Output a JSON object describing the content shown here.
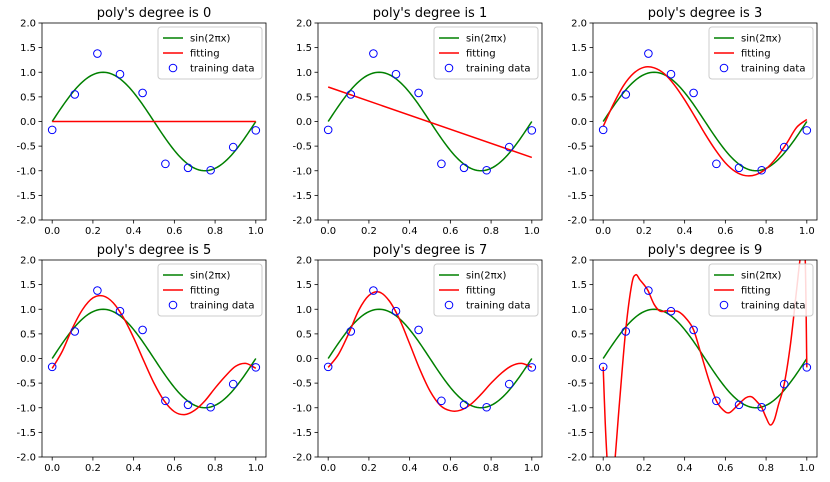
{
  "chart_data": [
    {
      "type": "line",
      "title": "poly's degree is 0",
      "xlim": [
        -0.05,
        1.05
      ],
      "ylim": [
        -2.0,
        2.0
      ],
      "xticks": [
        0.0,
        0.2,
        0.4,
        0.6,
        0.8,
        1.0
      ],
      "yticks": [
        -2.0,
        -1.5,
        -1.0,
        -0.5,
        0.0,
        0.5,
        1.0,
        1.5,
        2.0
      ],
      "grid": false,
      "legend_position": "top-right",
      "legend": [
        "sin(2πx)",
        "fitting",
        "training data"
      ],
      "training_data": {
        "x": [
          0.0,
          0.111,
          0.222,
          0.333,
          0.444,
          0.556,
          0.667,
          0.778,
          0.889,
          1.0
        ],
        "y": [
          -0.17,
          0.55,
          1.38,
          0.96,
          0.58,
          -0.86,
          -0.94,
          -0.99,
          -0.52,
          -0.18
        ]
      },
      "fitting": {
        "x": [
          0.0,
          1.0
        ],
        "y": [
          0.0,
          0.0
        ]
      }
    },
    {
      "type": "line",
      "title": "poly's degree is 1",
      "xlim": [
        -0.05,
        1.05
      ],
      "ylim": [
        -2.0,
        2.0
      ],
      "xticks": [
        0.0,
        0.2,
        0.4,
        0.6,
        0.8,
        1.0
      ],
      "yticks": [
        -2.0,
        -1.5,
        -1.0,
        -0.5,
        0.0,
        0.5,
        1.0,
        1.5,
        2.0
      ],
      "grid": false,
      "legend_position": "top-right",
      "legend": [
        "sin(2πx)",
        "fitting",
        "training data"
      ],
      "training_data": {
        "x": [
          0.0,
          0.111,
          0.222,
          0.333,
          0.444,
          0.556,
          0.667,
          0.778,
          0.889,
          1.0
        ],
        "y": [
          -0.17,
          0.55,
          1.38,
          0.96,
          0.58,
          -0.86,
          -0.94,
          -0.99,
          -0.52,
          -0.18
        ]
      },
      "fitting": {
        "x": [
          0.0,
          1.0
        ],
        "y": [
          0.7,
          -0.73
        ]
      }
    },
    {
      "type": "line",
      "title": "poly's degree is 3",
      "xlim": [
        -0.05,
        1.05
      ],
      "ylim": [
        -2.0,
        2.0
      ],
      "xticks": [
        0.0,
        0.2,
        0.4,
        0.6,
        0.8,
        1.0
      ],
      "yticks": [
        -2.0,
        -1.5,
        -1.0,
        -0.5,
        0.0,
        0.5,
        1.0,
        1.5,
        2.0
      ],
      "grid": false,
      "legend_position": "top-right",
      "legend": [
        "sin(2πx)",
        "fitting",
        "training data"
      ],
      "training_data": {
        "x": [
          0.0,
          0.111,
          0.222,
          0.333,
          0.444,
          0.556,
          0.667,
          0.778,
          0.889,
          1.0
        ],
        "y": [
          -0.17,
          0.55,
          1.38,
          0.96,
          0.58,
          -0.86,
          -0.94,
          -0.99,
          -0.52,
          -0.18
        ]
      },
      "fitting": {
        "x": [
          0.0,
          0.05,
          0.1,
          0.15,
          0.2,
          0.25,
          0.3,
          0.35,
          0.4,
          0.45,
          0.5,
          0.55,
          0.6,
          0.65,
          0.7,
          0.75,
          0.8,
          0.85,
          0.9,
          0.95,
          1.0
        ],
        "y": [
          -0.1,
          0.35,
          0.73,
          0.98,
          1.1,
          1.09,
          0.97,
          0.74,
          0.44,
          0.1,
          -0.25,
          -0.57,
          -0.84,
          -1.02,
          -1.1,
          -1.08,
          -0.96,
          -0.74,
          -0.45,
          -0.12,
          0.04
        ]
      }
    },
    {
      "type": "line",
      "title": "poly's degree is 5",
      "xlim": [
        -0.05,
        1.05
      ],
      "ylim": [
        -2.0,
        2.0
      ],
      "xticks": [
        0.0,
        0.2,
        0.4,
        0.6,
        0.8,
        1.0
      ],
      "yticks": [
        -2.0,
        -1.5,
        -1.0,
        -0.5,
        0.0,
        0.5,
        1.0,
        1.5,
        2.0
      ],
      "grid": false,
      "legend_position": "top-right",
      "legend": [
        "sin(2πx)",
        "fitting",
        "training data"
      ],
      "training_data": {
        "x": [
          0.0,
          0.111,
          0.222,
          0.333,
          0.444,
          0.556,
          0.667,
          0.778,
          0.889,
          1.0
        ],
        "y": [
          -0.17,
          0.55,
          1.38,
          0.96,
          0.58,
          -0.86,
          -0.94,
          -0.99,
          -0.52,
          -0.18
        ]
      },
      "fitting": {
        "x": [
          0.0,
          0.05,
          0.1,
          0.15,
          0.2,
          0.25,
          0.3,
          0.35,
          0.4,
          0.45,
          0.5,
          0.55,
          0.6,
          0.65,
          0.7,
          0.75,
          0.8,
          0.85,
          0.9,
          0.95,
          1.0
        ],
        "y": [
          -0.2,
          0.15,
          0.62,
          1.0,
          1.23,
          1.27,
          1.13,
          0.83,
          0.42,
          -0.05,
          -0.5,
          -0.86,
          -1.08,
          -1.14,
          -1.05,
          -0.86,
          -0.6,
          -0.36,
          -0.16,
          -0.1,
          -0.2
        ]
      }
    },
    {
      "type": "line",
      "title": "poly's degree is 7",
      "xlim": [
        -0.05,
        1.05
      ],
      "ylim": [
        -2.0,
        2.0
      ],
      "xticks": [
        0.0,
        0.2,
        0.4,
        0.6,
        0.8,
        1.0
      ],
      "yticks": [
        -2.0,
        -1.5,
        -1.0,
        -0.5,
        0.0,
        0.5,
        1.0,
        1.5,
        2.0
      ],
      "grid": false,
      "legend_position": "top-right",
      "legend": [
        "sin(2πx)",
        "fitting",
        "training data"
      ],
      "training_data": {
        "x": [
          0.0,
          0.111,
          0.222,
          0.333,
          0.444,
          0.556,
          0.667,
          0.778,
          0.889,
          1.0
        ],
        "y": [
          -0.17,
          0.55,
          1.38,
          0.96,
          0.58,
          -0.86,
          -0.94,
          -0.99,
          -0.52,
          -0.18
        ]
      },
      "fitting": {
        "x": [
          0.0,
          0.05,
          0.1,
          0.15,
          0.2,
          0.25,
          0.3,
          0.35,
          0.4,
          0.45,
          0.5,
          0.55,
          0.6,
          0.65,
          0.7,
          0.75,
          0.8,
          0.85,
          0.9,
          0.95,
          1.0
        ],
        "y": [
          -0.18,
          0.08,
          0.5,
          0.98,
          1.28,
          1.35,
          1.17,
          0.8,
          0.3,
          -0.22,
          -0.66,
          -0.95,
          -1.06,
          -1.05,
          -0.93,
          -0.73,
          -0.5,
          -0.3,
          -0.15,
          -0.1,
          -0.18
        ]
      }
    },
    {
      "type": "line",
      "title": "poly's degree is 9",
      "xlim": [
        -0.05,
        1.05
      ],
      "ylim": [
        -2.0,
        2.0
      ],
      "xticks": [
        0.0,
        0.2,
        0.4,
        0.6,
        0.8,
        1.0
      ],
      "yticks": [
        -2.0,
        -1.5,
        -1.0,
        -0.5,
        0.0,
        0.5,
        1.0,
        1.5,
        2.0
      ],
      "grid": false,
      "legend_position": "top-right",
      "legend": [
        "sin(2πx)",
        "fitting",
        "training data"
      ],
      "training_data": {
        "x": [
          0.0,
          0.111,
          0.222,
          0.333,
          0.444,
          0.556,
          0.667,
          0.778,
          0.889,
          1.0
        ],
        "y": [
          -0.17,
          0.55,
          1.38,
          0.96,
          0.58,
          -0.86,
          -0.94,
          -0.99,
          -0.52,
          -0.18
        ]
      },
      "fitting": {
        "x": [
          0.0,
          0.01,
          0.02,
          0.03,
          0.05,
          0.08,
          0.11,
          0.14,
          0.16,
          0.18,
          0.2,
          0.22,
          0.25,
          0.28,
          0.31,
          0.333,
          0.37,
          0.41,
          0.444,
          0.48,
          0.52,
          0.556,
          0.59,
          0.62,
          0.66,
          0.7,
          0.73,
          0.76,
          0.778,
          0.8,
          0.82,
          0.84,
          0.86,
          0.889,
          0.92,
          0.95,
          0.97,
          0.99,
          1.0
        ],
        "y": [
          -0.17,
          -1.3,
          -2.1,
          -2.6,
          -2.4,
          -0.9,
          0.55,
          1.5,
          1.7,
          1.6,
          1.5,
          1.38,
          1.1,
          0.96,
          0.97,
          0.96,
          0.95,
          0.8,
          0.58,
          0.1,
          -0.45,
          -0.86,
          -1.05,
          -1.1,
          -0.95,
          -0.8,
          -0.78,
          -0.9,
          -0.99,
          -1.2,
          -1.35,
          -1.25,
          -0.95,
          -0.52,
          0.3,
          1.4,
          2.1,
          2.3,
          -0.18
        ]
      }
    }
  ]
}
